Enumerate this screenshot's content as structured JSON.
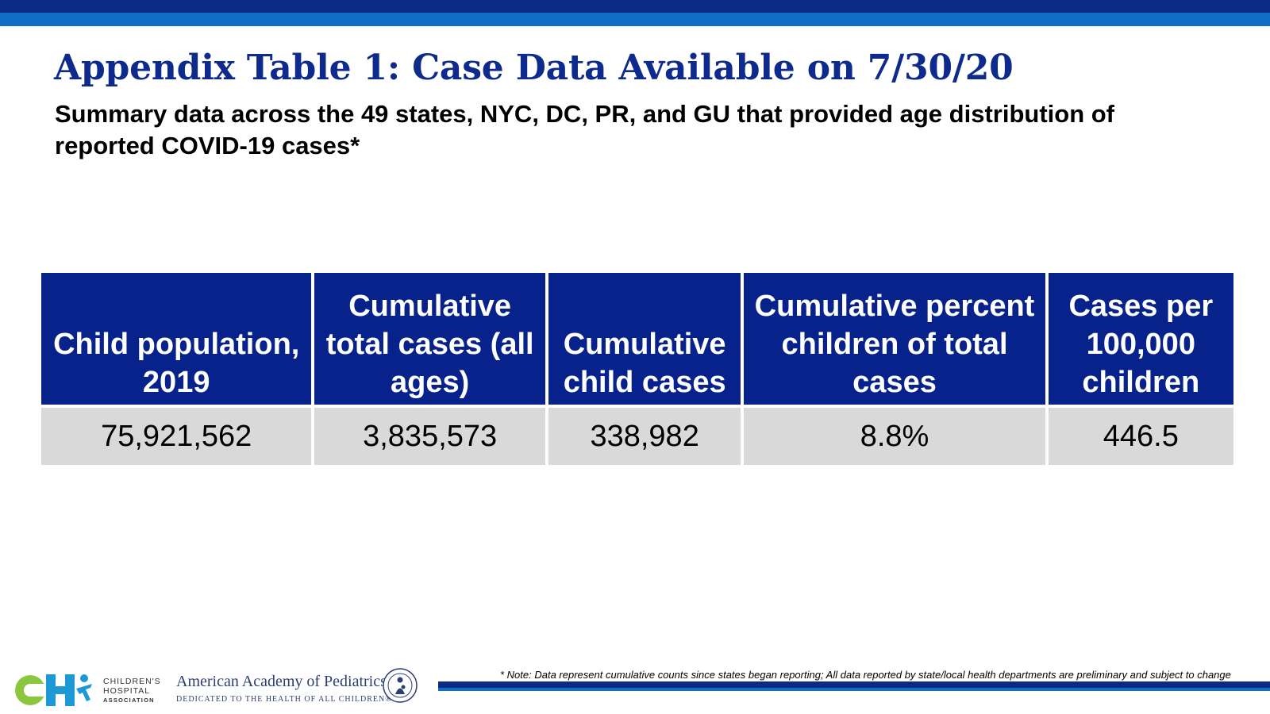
{
  "title": "Appendix Table 1: Case Data Available on 7/30/20",
  "subtitle": "Summary data across the 49 states, NYC, DC, PR, and GU that provided age distribution of reported COVID-19 cases*",
  "table": {
    "headers": [
      "Child population, 2019",
      "Cumulative total cases (all ages)",
      "Cumulative child cases",
      "Cumulative percent children of total cases",
      "Cases per 100,000 children"
    ],
    "row": [
      "75,921,562",
      "3,835,573",
      "338,982",
      "8.8%",
      "446.5"
    ]
  },
  "note": "* Note: Data represent cumulative counts since states began reporting; All data reported by state/local health departments are preliminary and subject to change",
  "logos": {
    "cha": {
      "line1": "CHILDREN'S",
      "line2": "HOSPITAL",
      "line3": "ASSOCIATION"
    },
    "aap": {
      "name": "American Academy of Pediatrics",
      "tagline": "DEDICATED TO THE HEALTH OF ALL CHILDREN®",
      "seal_icon": "aap-seal-icon"
    }
  },
  "colors": {
    "navy": "#07228a",
    "blue": "#0f6fc6",
    "cell_gray": "#d9d9d9",
    "title_blue": "#0d2a8c"
  }
}
